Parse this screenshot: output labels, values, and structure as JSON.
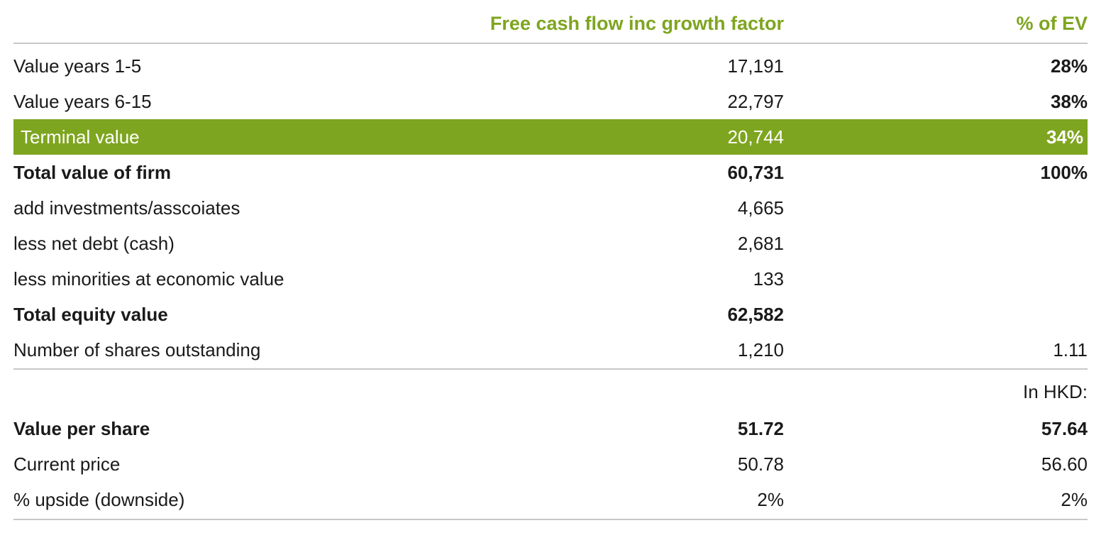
{
  "header": {
    "col1": "Free cash flow inc growth factor",
    "col2": "% of EV"
  },
  "rows": [
    {
      "label": "Value years 1-5",
      "v1": "17,191",
      "v2": "28%"
    },
    {
      "label": "Value years 6-15",
      "v1": "22,797",
      "v2": "38%"
    },
    {
      "label": "Terminal value",
      "v1": "20,744",
      "v2": "34%"
    },
    {
      "label": "Total value of firm",
      "v1": "60,731",
      "v2": "100%"
    },
    {
      "label": "add investments/asscoiates",
      "v1": "4,665",
      "v2": ""
    },
    {
      "label": "less net debt (cash)",
      "v1": "2,681",
      "v2": ""
    },
    {
      "label": "less minorities at economic value",
      "v1": "133",
      "v2": ""
    },
    {
      "label": "Total equity value",
      "v1": "62,582",
      "v2": ""
    },
    {
      "label": "Number of shares outstanding",
      "v1": "1,210",
      "v2": "1.11"
    }
  ],
  "currency_note": "In HKD:",
  "lower_rows": [
    {
      "label": "Value per share",
      "v1": "51.72",
      "v2": "57.64"
    },
    {
      "label": "Current price",
      "v1": "50.78",
      "v2": "56.60"
    },
    {
      "label": "% upside (downside)",
      "v1": "2%",
      "v2": "2%"
    }
  ],
  "colors": {
    "accent": "#7ea51f",
    "rule": "#c8c8c8",
    "text": "#1a1a1a"
  }
}
